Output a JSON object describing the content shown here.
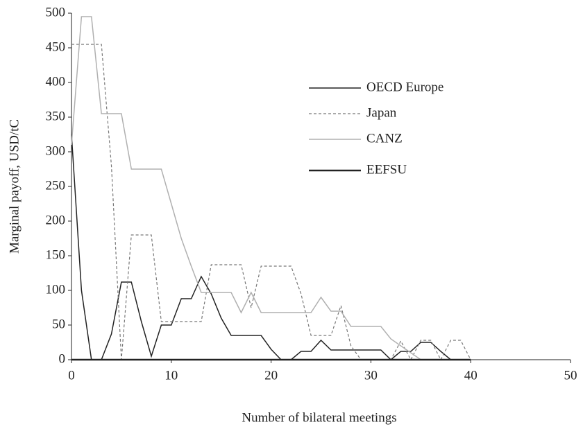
{
  "chart_data": {
    "type": "line",
    "x": [
      0,
      1,
      2,
      3,
      4,
      5,
      6,
      7,
      8,
      9,
      10,
      11,
      12,
      13,
      14,
      15,
      16,
      17,
      18,
      19,
      20,
      21,
      22,
      23,
      24,
      25,
      26,
      27,
      28,
      29,
      30,
      31,
      32,
      33,
      34,
      35,
      36,
      37,
      38,
      39,
      40
    ],
    "xlabel": "Number of bilateral meetings",
    "ylabel": "Marginal payoff, USD/tC",
    "xlim": [
      0,
      50
    ],
    "xticks": [
      0,
      10,
      20,
      30,
      40,
      50
    ],
    "ylim": [
      0,
      500
    ],
    "yticks": [
      0,
      50,
      100,
      150,
      200,
      250,
      300,
      350,
      400,
      450,
      500
    ],
    "legend": "upper right",
    "series": [
      {
        "name": "OECD Europe",
        "color": "#222222",
        "width": 1.5,
        "dash": false,
        "values": [
          325,
          100,
          0,
          0,
          37,
          112,
          112,
          55,
          5,
          50,
          50,
          88,
          88,
          120,
          95,
          60,
          35,
          35,
          35,
          35,
          15,
          0,
          0,
          12,
          12,
          28,
          14,
          14,
          14,
          14,
          14,
          14,
          0,
          12,
          12,
          25,
          25,
          12,
          0,
          0,
          0
        ]
      },
      {
        "name": "Japan",
        "color": "#777777",
        "width": 1.2,
        "dash": true,
        "values": [
          455,
          455,
          455,
          455,
          280,
          0,
          180,
          180,
          180,
          55,
          55,
          55,
          55,
          55,
          137,
          137,
          137,
          137,
          75,
          135,
          135,
          135,
          135,
          95,
          35,
          35,
          35,
          78,
          20,
          0,
          0,
          0,
          0,
          27,
          0,
          28,
          28,
          0,
          28,
          28,
          0
        ]
      },
      {
        "name": "CANZ",
        "color": "#b0b0b0",
        "width": 1.5,
        "dash": false,
        "values": [
          310,
          495,
          495,
          355,
          355,
          355,
          275,
          275,
          275,
          275,
          225,
          175,
          135,
          97,
          97,
          97,
          97,
          68,
          97,
          68,
          68,
          68,
          68,
          68,
          68,
          90,
          70,
          70,
          48,
          48,
          48,
          48,
          30,
          20,
          10,
          0,
          0,
          0,
          0,
          0,
          0
        ]
      },
      {
        "name": "EEFSU",
        "color": "#222222",
        "width": 2.5,
        "dash": false,
        "values": [
          0,
          0,
          0,
          0,
          0,
          0,
          0,
          0,
          0,
          0,
          0,
          0,
          0,
          0,
          0,
          0,
          0,
          0,
          0,
          0,
          0,
          0,
          0,
          0,
          0,
          0,
          0,
          0,
          0,
          0,
          0,
          0,
          0,
          0,
          0,
          0,
          0,
          0,
          0,
          0,
          0
        ]
      }
    ]
  }
}
